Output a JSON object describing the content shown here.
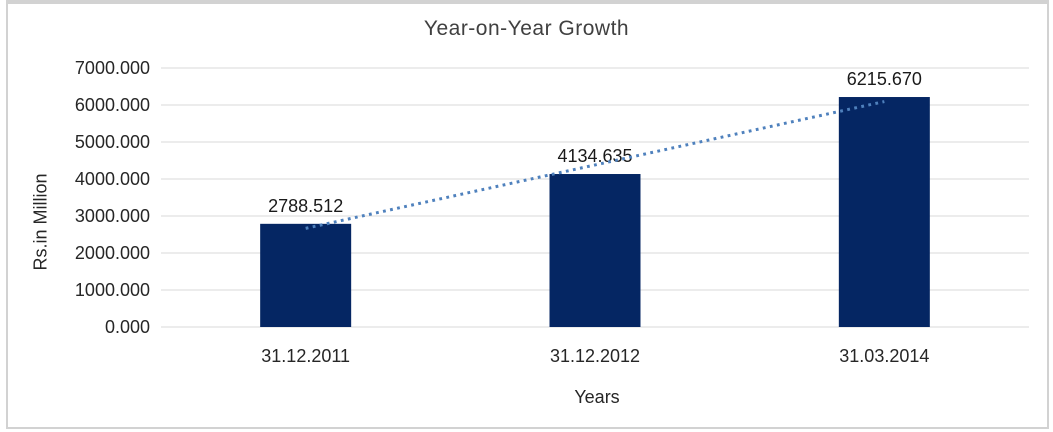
{
  "frame": {
    "border_color": "#d2d2d2"
  },
  "chart_data": {
    "type": "bar",
    "title": "Year-on-Year Growth",
    "xlabel": "Years",
    "ylabel": "Rs.in Million",
    "categories": [
      "31.12.2011",
      "31.12.2012",
      "31.03.2014"
    ],
    "values": [
      2788.512,
      4134.635,
      6215.67
    ],
    "data_labels": [
      "2788.512",
      "4134.635",
      "6215.670"
    ],
    "ytick_labels": [
      "0.000",
      "1000.000",
      "2000.000",
      "3000.000",
      "4000.000",
      "5000.000",
      "6000.000",
      "7000.000"
    ],
    "ylim": [
      0,
      7000
    ],
    "grid": true,
    "legend": "none",
    "bar_color": "#052663",
    "gridline_color": "#d9d9d9",
    "label_color": "#1a1a1a",
    "tick_color": "#262626",
    "trendline": {
      "type": "linear",
      "style": "dotted",
      "color": "#4f81bd"
    }
  }
}
